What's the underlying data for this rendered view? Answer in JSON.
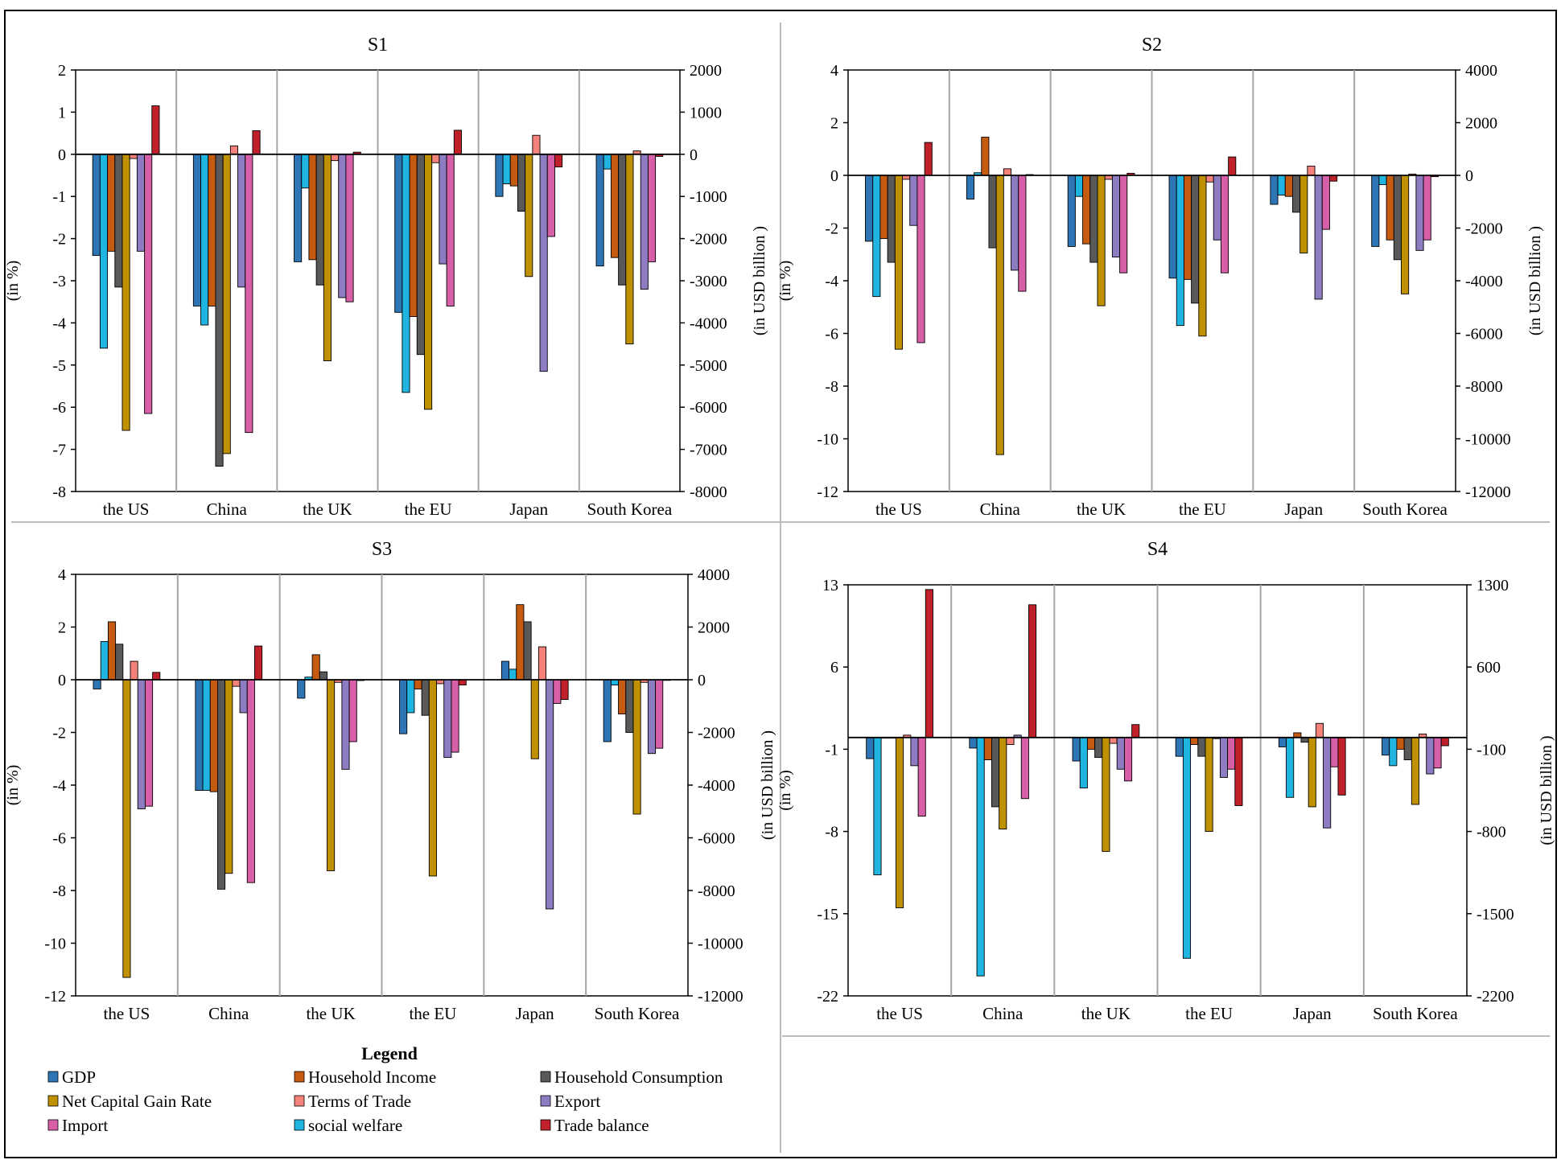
{
  "legend": {
    "title": "Legend",
    "items": [
      {
        "name": "GDP",
        "color": "#2E75B6"
      },
      {
        "name": "Household Income",
        "color": "#C55A11"
      },
      {
        "name": "Household Consumption",
        "color": "#595959"
      },
      {
        "name": "Net Capital Gain Rate",
        "color": "#BF9000"
      },
      {
        "name": "Terms of Trade",
        "color": "#F4817A"
      },
      {
        "name": "Export",
        "color": "#8E7CC3"
      },
      {
        "name": "Import",
        "color": "#D65FA7"
      },
      {
        "name": "social welfare",
        "color": "#1FB5E0"
      },
      {
        "name": "Trade balance",
        "color": "#C0202A"
      }
    ]
  },
  "chart_data": [
    {
      "type": "bar",
      "title": "S1",
      "ylabel": "(in %)",
      "y2label": "(in USD billion )",
      "ylim": [
        -8,
        2
      ],
      "yticks": [
        2,
        1,
        0,
        -1,
        -2,
        -3,
        -4,
        -5,
        -6,
        -7,
        -8
      ],
      "y2lim": [
        -8000,
        2000
      ],
      "y2ticks": [
        2000,
        1000,
        0,
        -1000,
        -2000,
        -3000,
        -4000,
        -5000,
        -6000,
        -7000,
        -8000
      ],
      "categories": [
        "the US",
        "China",
        "the UK",
        "the EU",
        "Japan",
        "South Korea"
      ],
      "series": [
        {
          "name": "GDP",
          "values": [
            -2.4,
            -3.6,
            -2.55,
            -3.75,
            -1.0,
            -2.65
          ]
        },
        {
          "name": "social welfare",
          "values": [
            -4.6,
            -4.05,
            -0.8,
            -5.65,
            -0.7,
            -0.35
          ]
        },
        {
          "name": "Household Income",
          "values": [
            -2.3,
            -3.6,
            -2.5,
            -3.85,
            -0.75,
            -2.45
          ]
        },
        {
          "name": "Household Consumption",
          "values": [
            -3.15,
            -7.4,
            -3.1,
            -4.75,
            -1.35,
            -3.1
          ]
        },
        {
          "name": "Net Capital Gain Rate",
          "values": [
            -6.55,
            -7.1,
            -4.9,
            -6.05,
            -2.9,
            -4.5
          ]
        },
        {
          "name": "Terms of Trade",
          "values": [
            -0.1,
            0.2,
            -0.15,
            -0.2,
            0.45,
            0.08
          ]
        },
        {
          "name": "Export",
          "values": [
            -2.3,
            -3.15,
            -3.4,
            -2.6,
            -5.15,
            -3.2
          ]
        },
        {
          "name": "Import",
          "values": [
            -6.15,
            -6.6,
            -3.5,
            -3.6,
            -1.95,
            -2.55
          ]
        },
        {
          "name": "Trade balance",
          "values": [
            1150,
            560,
            50,
            570,
            -300,
            -50
          ],
          "axis": "right"
        }
      ]
    },
    {
      "type": "bar",
      "title": "S2",
      "ylabel": "(in %)",
      "y2label": "(in USD billion )",
      "ylim": [
        -12,
        4
      ],
      "yticks": [
        4,
        2,
        0,
        -2,
        -4,
        -6,
        -8,
        -10,
        -12
      ],
      "y2lim": [
        -12000,
        4000
      ],
      "y2ticks": [
        4000,
        2000,
        0,
        -2000,
        -4000,
        -6000,
        -8000,
        -10000,
        -12000
      ],
      "categories": [
        "the US",
        "China",
        "the UK",
        "the EU",
        "Japan",
        "South Korea"
      ],
      "series": [
        {
          "name": "GDP",
          "values": [
            -2.5,
            -0.9,
            -2.7,
            -3.9,
            -1.1,
            -2.7
          ]
        },
        {
          "name": "social welfare",
          "values": [
            -4.6,
            0.1,
            -0.8,
            -5.7,
            -0.75,
            -0.35
          ]
        },
        {
          "name": "Household Income",
          "values": [
            -2.4,
            1.45,
            -2.6,
            -3.95,
            -0.8,
            -2.45
          ]
        },
        {
          "name": "Household Consumption",
          "values": [
            -3.3,
            -2.75,
            -3.3,
            -4.85,
            -1.4,
            -3.2
          ]
        },
        {
          "name": "Net Capital Gain Rate",
          "values": [
            -6.6,
            -10.6,
            -4.95,
            -6.1,
            -2.95,
            -4.5
          ]
        },
        {
          "name": "Terms of Trade",
          "values": [
            -0.15,
            0.25,
            -0.15,
            -0.25,
            0.35,
            0.05
          ]
        },
        {
          "name": "Export",
          "values": [
            -1.9,
            -3.6,
            -3.1,
            -2.45,
            -4.7,
            -2.85
          ]
        },
        {
          "name": "Import",
          "values": [
            -6.35,
            -4.4,
            -3.7,
            -3.7,
            -2.05,
            -2.45
          ]
        },
        {
          "name": "Trade balance",
          "values": [
            1250,
            30,
            80,
            700,
            -220,
            -50
          ],
          "axis": "right"
        }
      ]
    },
    {
      "type": "bar",
      "title": "S3",
      "ylabel": "(in %)",
      "y2label": "(in USD billion )",
      "ylim": [
        -12,
        4
      ],
      "yticks": [
        4,
        2,
        0,
        -2,
        -4,
        -6,
        -8,
        -10,
        -12
      ],
      "y2lim": [
        -12000,
        4000
      ],
      "y2ticks": [
        4000,
        2000,
        0,
        -2000,
        -4000,
        -6000,
        -8000,
        -10000,
        -12000
      ],
      "categories": [
        "the US",
        "China",
        "the UK",
        "the EU",
        "Japan",
        "South Korea"
      ],
      "series": [
        {
          "name": "GDP",
          "values": [
            -0.35,
            -4.2,
            -0.7,
            -2.05,
            0.7,
            -2.35
          ]
        },
        {
          "name": "social welfare",
          "values": [
            1.45,
            -4.2,
            0.1,
            -1.25,
            0.4,
            -0.2
          ]
        },
        {
          "name": "Household Income",
          "values": [
            2.2,
            -4.25,
            0.95,
            -0.35,
            2.85,
            -1.3
          ]
        },
        {
          "name": "Household Consumption",
          "values": [
            1.35,
            -7.95,
            0.3,
            -1.35,
            2.2,
            -2.0
          ]
        },
        {
          "name": "Net Capital Gain Rate",
          "values": [
            -11.3,
            -7.35,
            -7.25,
            -7.45,
            -3.0,
            -5.1
          ]
        },
        {
          "name": "Terms of Trade",
          "values": [
            0.7,
            -0.25,
            -0.1,
            -0.15,
            1.25,
            -0.1
          ]
        },
        {
          "name": "Export",
          "values": [
            -4.9,
            -1.25,
            -3.4,
            -2.95,
            -8.7,
            -2.8
          ]
        },
        {
          "name": "Import",
          "values": [
            -4.8,
            -7.7,
            -2.35,
            -2.75,
            -0.9,
            -2.6
          ]
        },
        {
          "name": "Trade balance",
          "values": [
            280,
            1280,
            -30,
            -200,
            -750,
            -20
          ],
          "axis": "right"
        }
      ]
    },
    {
      "type": "bar",
      "title": "S4",
      "ylabel": "(in %)",
      "y2label": "(in USD billion )",
      "ylim": [
        -22,
        13
      ],
      "yticks": [
        13,
        6,
        -1,
        -8,
        -15,
        -22
      ],
      "y2lim": [
        -2200,
        1300
      ],
      "y2ticks": [
        1300,
        600,
        -100,
        -800,
        -1500,
        -2200
      ],
      "categories": [
        "the US",
        "China",
        "the UK",
        "the EU",
        "Japan",
        "South Korea"
      ],
      "series": [
        {
          "name": "GDP",
          "values": [
            -1.8,
            -0.9,
            -2.0,
            -1.6,
            -0.8,
            -1.5
          ]
        },
        {
          "name": "social welfare",
          "values": [
            -11.7,
            -20.3,
            -4.3,
            -18.8,
            -5.1,
            -2.4
          ]
        },
        {
          "name": "Household Income",
          "values": [
            0.0,
            -1.9,
            -1.0,
            -0.6,
            0.4,
            -1.0
          ]
        },
        {
          "name": "Household Consumption",
          "values": [
            0.0,
            -5.9,
            -1.7,
            -1.6,
            -0.4,
            -1.9
          ]
        },
        {
          "name": "Net Capital Gain Rate",
          "values": [
            -14.5,
            -7.8,
            -9.7,
            -8.0,
            -5.9,
            -5.7
          ]
        },
        {
          "name": "Terms of Trade",
          "values": [
            0.2,
            -0.6,
            -0.5,
            -0.1,
            1.2,
            0.3
          ]
        },
        {
          "name": "Export",
          "values": [
            -2.4,
            0.2,
            -2.7,
            -3.4,
            -7.7,
            -3.1
          ]
        },
        {
          "name": "Import",
          "values": [
            -6.7,
            -5.2,
            -3.7,
            -2.7,
            -2.5,
            -2.6
          ]
        },
        {
          "name": "Trade balance",
          "values": [
            1260,
            1130,
            110,
            -580,
            -490,
            -70
          ],
          "axis": "right"
        }
      ]
    }
  ]
}
